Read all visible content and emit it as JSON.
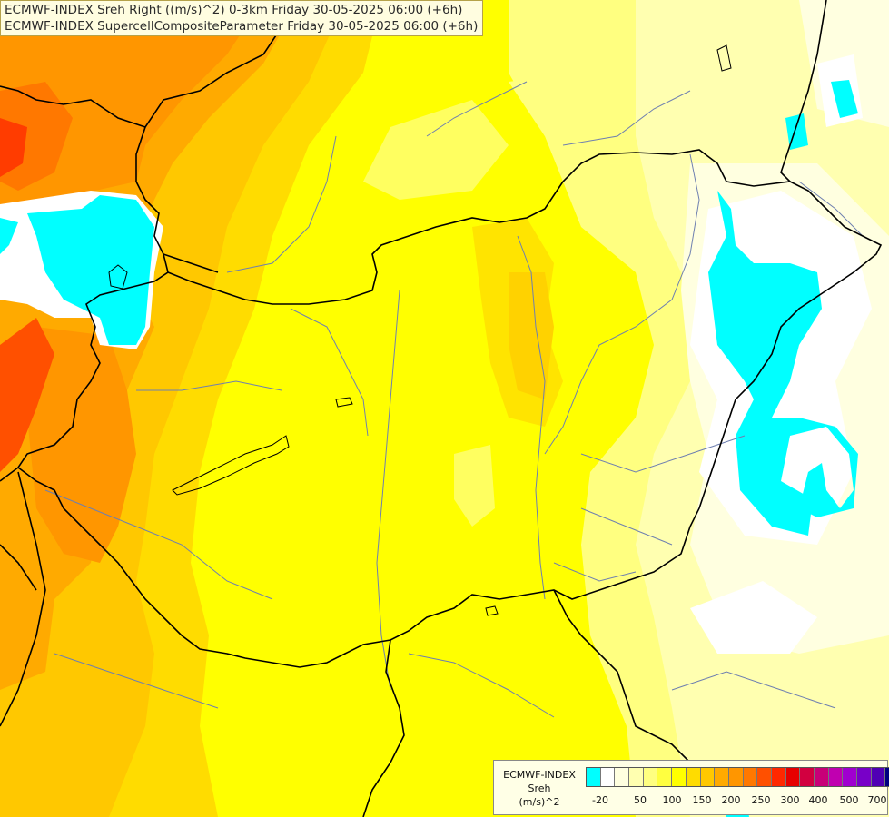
{
  "header": {
    "line1": "ECMWF-INDEX Sreh Right ((m/s)^2) 0-3km Friday 30-05-2025 06:00 (+6h)",
    "line2": "ECMWF-INDEX SupercellCompositeParameter Friday 30-05-2025 06:00 (+6h)"
  },
  "legend": {
    "title_line1": "ECMWF-INDEX",
    "title_line2": "Sreh",
    "title_line3": "(m/s)^2",
    "colors": [
      "#00ffff",
      "#ffffff",
      "#ffffe0",
      "#ffffb0",
      "#ffff80",
      "#ffff40",
      "#ffff00",
      "#ffdc00",
      "#ffc800",
      "#ffaa00",
      "#ff9600",
      "#ff7800",
      "#ff5000",
      "#ff2800",
      "#e60000",
      "#d20040",
      "#c80078",
      "#c000b0",
      "#a000d0",
      "#7800c8",
      "#5000b4",
      "#000080"
    ],
    "ticks": [
      "-20",
      "50",
      "100",
      "150",
      "200",
      "250",
      "300",
      "400",
      "500",
      "700"
    ]
  },
  "map": {
    "field_colors": {
      "cyan": "#00ffff",
      "white": "#ffffff",
      "pale": "#ffffc0",
      "light_yellow": "#ffff80",
      "yellow": "#ffff00",
      "gold": "#ffdc00",
      "amber": "#ffc800",
      "orange": "#ffaa00",
      "dark_orange": "#ff7800",
      "red_orange": "#ff5000"
    },
    "border_color": "#000000",
    "river_color": "#6e7fb0"
  }
}
